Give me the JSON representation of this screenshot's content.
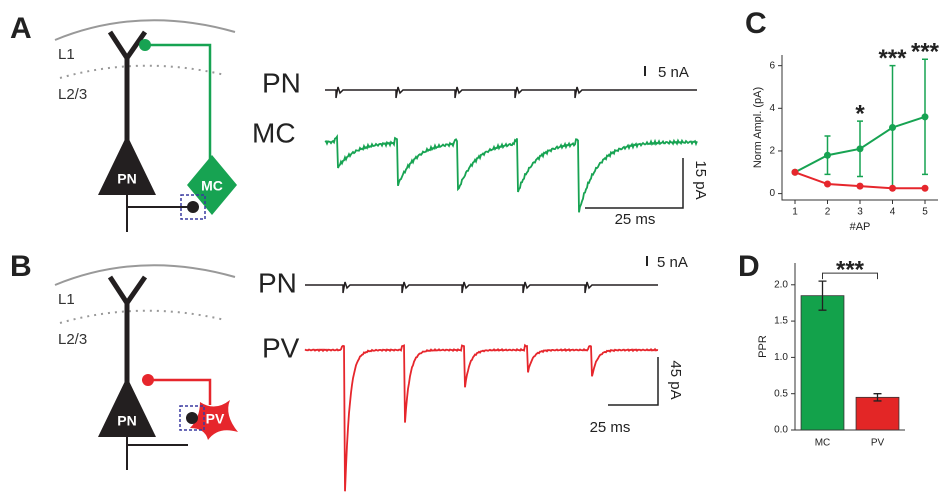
{
  "panels": {
    "A": {
      "label": "A",
      "layers": [
        "L1",
        "L2/3"
      ],
      "cells": [
        "PN",
        "MC"
      ],
      "traces": [
        "PN",
        "MC"
      ],
      "scale_bars": [
        "5 nA",
        "15 pA",
        "25 ms"
      ]
    },
    "B": {
      "label": "B",
      "layers": [
        "L1",
        "L2/3"
      ],
      "cells": [
        "PN",
        "PV"
      ],
      "traces": [
        "PN",
        "PV"
      ],
      "scale_bars": [
        "5 nA",
        "45 pA",
        "25 ms"
      ]
    }
  },
  "chart_data": [
    {
      "type": "line",
      "panel": "C",
      "xlabel": "#AP",
      "ylabel": "Norm Ampl. (pA)",
      "x": [
        1,
        2,
        3,
        4,
        5
      ],
      "xlim": [
        0.6,
        5.4
      ],
      "xticks": [
        1,
        2,
        3,
        4,
        5
      ],
      "ylim": [
        -0.3,
        6.5
      ],
      "yticks": [
        0,
        2,
        4,
        6
      ],
      "series": [
        {
          "color": "#17a352",
          "values": [
            1,
            1.8,
            2.1,
            3.1,
            3.6
          ],
          "errors": [
            0,
            0.9,
            1.3,
            2.9,
            2.7
          ]
        },
        {
          "color": "#e6262c",
          "values": [
            1,
            0.45,
            0.35,
            0.25,
            0.25
          ]
        }
      ],
      "annotations": [
        {
          "text": "*",
          "x": 3
        },
        {
          "text": "***",
          "x": 4
        },
        {
          "text": "***",
          "x": 5
        }
      ]
    },
    {
      "type": "bar",
      "panel": "D",
      "ylabel": "PPR",
      "categories": [
        "MC",
        "PV"
      ],
      "values": [
        1.85,
        0.45
      ],
      "errors": [
        0.2,
        0.05
      ],
      "colors": [
        "#13a24b",
        "#e32626"
      ],
      "ylim": [
        0,
        2.3
      ],
      "yticks": [
        {
          "value": 0,
          "label": "0.0"
        },
        {
          "value": 0.5,
          "label": "0.5"
        },
        {
          "value": 1,
          "label": "1.0"
        },
        {
          "value": 1.5,
          "label": "1.5"
        },
        {
          "value": 2,
          "label": "2.0"
        }
      ],
      "significance": "***"
    }
  ]
}
